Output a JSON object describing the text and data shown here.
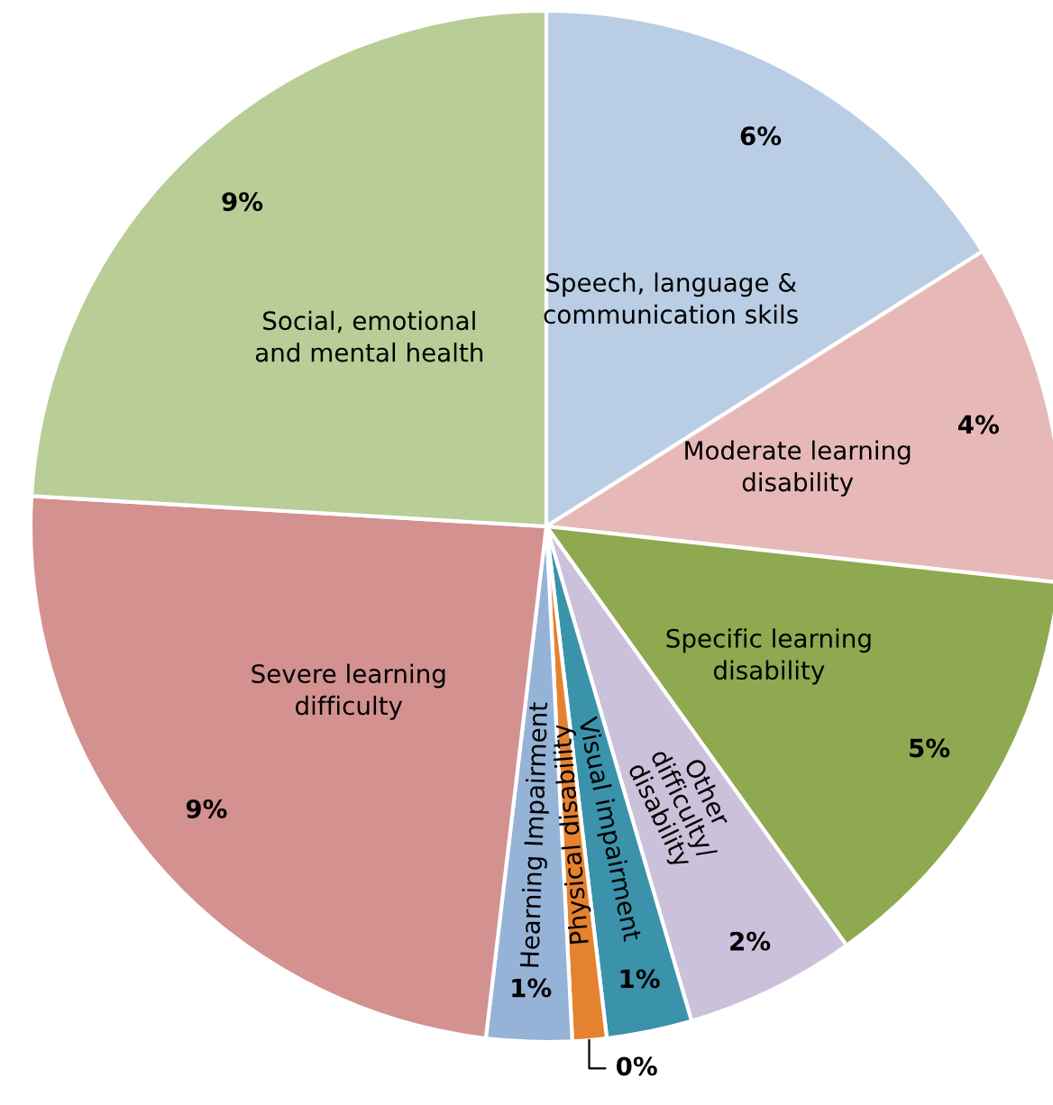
{
  "chart_data": {
    "type": "pie",
    "categories": [
      "Speech, language &\ncommunication skils",
      "Moderate learning\ndisability",
      "Specific learning\ndisability",
      "Other\ndifficulty/\ndisability",
      "Visual impairment",
      "Physical disability",
      "Hearning Impairment",
      "Severe learning\ndifficulty",
      "Social, emotional\nand mental health"
    ],
    "values": [
      6,
      4,
      5,
      2,
      1,
      0.4,
      1,
      9,
      9
    ],
    "value_labels": [
      "6%",
      "4%",
      "5%",
      "2%",
      "1%",
      "0%",
      "1%",
      "9%",
      "9%"
    ],
    "colors": [
      "#b9cde5",
      "#e6b9b8",
      "#8ea94f",
      "#ccc1da",
      "#3a93ab",
      "#e5822f",
      "#95b3d7",
      "#d39190",
      "#b9cd96"
    ]
  }
}
